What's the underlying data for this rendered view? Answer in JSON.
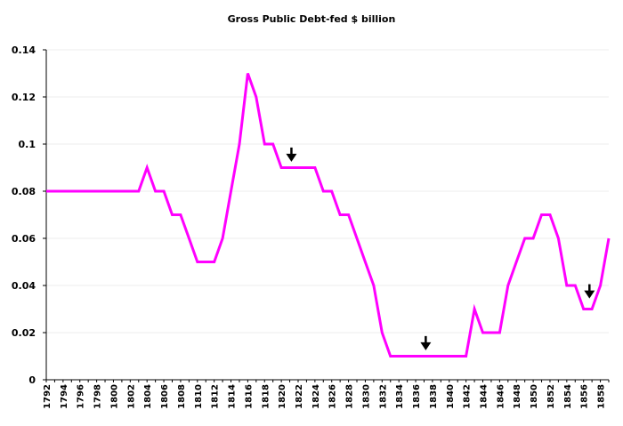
{
  "chart_data": {
    "type": "line",
    "title": "Gross Public Debt-fed $ billion",
    "xlabel": "",
    "ylabel": "",
    "ylim": [
      0,
      0.14
    ],
    "yticks": [
      "0",
      "0.02",
      "0.04",
      "0.06",
      "0.08",
      "0.1",
      "0.12",
      "0.14"
    ],
    "xlim": [
      1792,
      1859
    ],
    "xticks": [
      "1792",
      "1794",
      "1796",
      "1798",
      "1800",
      "1802",
      "1804",
      "1806",
      "1808",
      "1810",
      "1812",
      "1814",
      "1816",
      "1818",
      "1820",
      "1822",
      "1824",
      "1826",
      "1828",
      "1830",
      "1832",
      "1834",
      "1836",
      "1838",
      "1840",
      "1842",
      "1844",
      "1846",
      "1848",
      "1850",
      "1852",
      "1854",
      "1856",
      "1858"
    ],
    "grid": true,
    "legend": "none",
    "series": [
      {
        "color": "#ff00ff",
        "x": [
          1792,
          1793,
          1794,
          1795,
          1796,
          1797,
          1798,
          1799,
          1800,
          1801,
          1802,
          1803,
          1804,
          1805,
          1806,
          1807,
          1808,
          1809,
          1810,
          1811,
          1812,
          1813,
          1814,
          1815,
          1816,
          1817,
          1818,
          1819,
          1820,
          1821,
          1822,
          1823,
          1824,
          1825,
          1826,
          1827,
          1828,
          1829,
          1830,
          1831,
          1832,
          1833,
          1834,
          1835,
          1836,
          1837,
          1838,
          1839,
          1840,
          1841,
          1842,
          1843,
          1844,
          1845,
          1846,
          1847,
          1848,
          1849,
          1850,
          1851,
          1852,
          1853,
          1854,
          1855,
          1856,
          1857,
          1858,
          1859
        ],
        "y": [
          0.08,
          0.08,
          0.08,
          0.08,
          0.08,
          0.08,
          0.08,
          0.08,
          0.08,
          0.08,
          0.08,
          0.08,
          0.09,
          0.08,
          0.08,
          0.07,
          0.07,
          0.06,
          0.05,
          0.05,
          0.05,
          0.06,
          0.08,
          0.1,
          0.13,
          0.12,
          0.1,
          0.1,
          0.09,
          0.09,
          0.09,
          0.09,
          0.09,
          0.08,
          0.08,
          0.07,
          0.07,
          0.06,
          0.05,
          0.04,
          0.02,
          0.01,
          0.01,
          0.01,
          0.01,
          0.01,
          0.01,
          0.01,
          0.01,
          0.01,
          0.01,
          0.03,
          0.02,
          0.02,
          0.02,
          0.04,
          0.05,
          0.06,
          0.06,
          0.07,
          0.07,
          0.06,
          0.04,
          0.04,
          0.03,
          0.03,
          0.04,
          0.06
        ]
      }
    ],
    "annotations": [
      {
        "type": "arrow-down",
        "x": 1821.2,
        "y": 0.0925
      },
      {
        "type": "arrow-down",
        "x": 1837.2,
        "y": 0.0125
      },
      {
        "type": "arrow-down",
        "x": 1856.7,
        "y": 0.0345
      }
    ]
  }
}
